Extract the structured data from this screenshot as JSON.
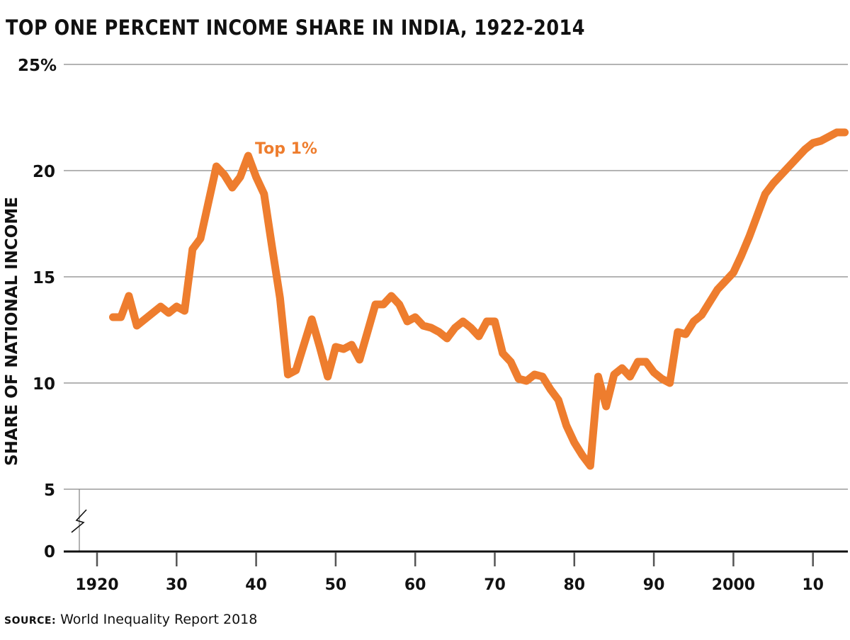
{
  "title": "TOP ONE PERCENT INCOME SHARE IN INDIA, 1922-2014",
  "source_label": "SOURCE:",
  "source_text": "World Inequality Report 2018",
  "chart_data": {
    "type": "line",
    "title": "TOP ONE PERCENT INCOME SHARE IN INDIA, 1922-2014",
    "ylabel": "SHARE OF NATIONAL INCOME",
    "xlabel": "",
    "ylim": [
      0,
      25
    ],
    "y_axis_break": [
      0,
      5
    ],
    "xlim": [
      1918,
      2014.5
    ],
    "yticks": [
      {
        "v": 0,
        "label": "0"
      },
      {
        "v": 5,
        "label": "5"
      },
      {
        "v": 10,
        "label": "10"
      },
      {
        "v": 15,
        "label": "15"
      },
      {
        "v": 20,
        "label": "20"
      },
      {
        "v": 25,
        "label": "25%"
      }
    ],
    "xticks": [
      {
        "v": 1920,
        "label": "1920"
      },
      {
        "v": 1930,
        "label": "30"
      },
      {
        "v": 1940,
        "label": "40"
      },
      {
        "v": 1950,
        "label": "50"
      },
      {
        "v": 1960,
        "label": "60"
      },
      {
        "v": 1970,
        "label": "70"
      },
      {
        "v": 1980,
        "label": "80"
      },
      {
        "v": 1990,
        "label": "90"
      },
      {
        "v": 2000,
        "label": "2000"
      },
      {
        "v": 2010,
        "label": "10"
      }
    ],
    "grid": "horizontal",
    "color": "#EE7D2E",
    "series": [
      {
        "name": "Top 1%",
        "x": [
          1922,
          1923,
          1924,
          1925,
          1926,
          1927,
          1928,
          1929,
          1930,
          1931,
          1932,
          1933,
          1934,
          1935,
          1936,
          1937,
          1938,
          1939,
          1940,
          1941,
          1942,
          1943,
          1944,
          1945,
          1946,
          1947,
          1948,
          1949,
          1950,
          1951,
          1952,
          1953,
          1954,
          1955,
          1956,
          1957,
          1958,
          1959,
          1960,
          1961,
          1962,
          1963,
          1964,
          1965,
          1966,
          1967,
          1968,
          1969,
          1970,
          1971,
          1972,
          1973,
          1974,
          1975,
          1976,
          1977,
          1978,
          1979,
          1980,
          1981,
          1982,
          1983,
          1984,
          1985,
          1986,
          1987,
          1988,
          1989,
          1990,
          1991,
          1992,
          1993,
          1994,
          1995,
          1996,
          1997,
          1998,
          1999,
          2000,
          2001,
          2002,
          2003,
          2004,
          2005,
          2006,
          2007,
          2008,
          2009,
          2010,
          2011,
          2012,
          2013,
          2014
        ],
        "values": [
          13.1,
          13.1,
          14.1,
          12.7,
          13.0,
          13.3,
          13.6,
          13.3,
          13.6,
          13.4,
          16.3,
          16.8,
          18.5,
          20.2,
          19.8,
          19.2,
          19.7,
          20.7,
          19.7,
          18.9,
          16.4,
          14.0,
          10.4,
          10.6,
          11.8,
          13.0,
          11.7,
          10.3,
          11.7,
          11.6,
          11.8,
          11.1,
          12.4,
          13.7,
          13.7,
          14.1,
          13.7,
          12.9,
          13.1,
          12.7,
          12.6,
          12.4,
          12.1,
          12.6,
          12.9,
          12.6,
          12.2,
          12.9,
          12.9,
          11.4,
          11.0,
          10.2,
          10.1,
          10.4,
          10.3,
          9.7,
          9.2,
          8.0,
          7.2,
          6.6,
          6.1,
          10.3,
          8.9,
          10.4,
          10.7,
          10.3,
          11.0,
          11.0,
          10.5,
          10.2,
          10.0,
          12.4,
          12.3,
          12.9,
          13.2,
          13.8,
          14.4,
          14.8,
          15.2,
          16.0,
          16.9,
          17.9,
          18.9,
          19.4,
          19.8,
          20.2,
          20.6,
          21.0,
          21.3,
          21.4,
          21.6,
          21.8,
          21.8
        ]
      }
    ]
  }
}
